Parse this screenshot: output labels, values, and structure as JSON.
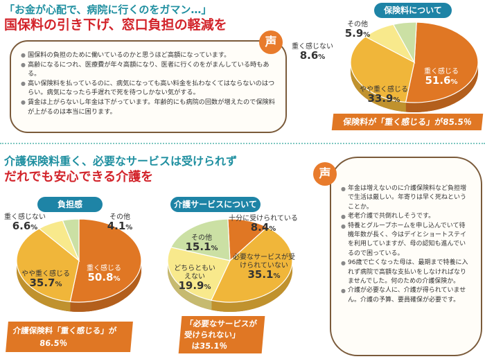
{
  "top": {
    "quote": "「お金が心配で、病院に行くのをガマン…」",
    "headline": "国保料の引き下げ、窓口負担の軽減を",
    "voice_badge": "声",
    "voices": [
      "国保料の負担のために働いているのかと思うほど高額になっています。",
      "高齢になるにつれ、医療費が年々高額になり、医者に行くのをがまんしている時もある。",
      "高い保険料を払っているのに、病気になっても高い料金を払わなくてはならないのはつらい。病気になったら手遅れで死を待つしかない気がする。",
      "賃金は上がらないし年金は下がっています。年齢的にも病院の回数が増えたので保険料が上がるのは本当に困ります。"
    ],
    "chart_title": "保険料について",
    "summary": "保険料が「重く感じる」が85.5％"
  },
  "bottom": {
    "headline1": "介護保険料重く、必要なサービスは受けられず",
    "headline2": "だれでも安心できる介護を",
    "burden_title": "負担感",
    "burden_summary_1": "介護保険料「重く感じる」が",
    "burden_summary_2": "86.5％",
    "service_title": "介護サービスについて",
    "service_summary_1": "「必要なサービスが",
    "service_summary_2": "受けられない」",
    "service_summary_3": "は35.1％",
    "voice_badge": "声",
    "voices": [
      "年金は増えないのに介護保険料など負担増で生活は厳しい。年寄りは早く死ねということか。",
      "老老介護で共倒れしそうです。",
      "特養とグループホームを申し込んでいて待機年数が長く、今はデイとショートステイを利用していますが、母の認知も進んでいるので困っている。",
      "96歳で亡くなった母は、最期まで特養に入れず病院で高額な支払いをしなければなりませんでした。何のための介護保険か。",
      "介護が必要な人に、介護が得られていません。介護の予算、要員確保が必要です。"
    ]
  },
  "chart_data": [
    {
      "type": "pie",
      "title": "保険料について",
      "labels": [
        "重く感じる",
        "やや重く感じる",
        "重く感じない",
        "その他"
      ],
      "values": [
        51.6,
        33.9,
        8.6,
        5.9
      ],
      "value_labels": [
        "51.6",
        "33.9",
        "8.6",
        "5.9"
      ],
      "unit": "%",
      "colors": [
        "#e07724",
        "#f0b63a",
        "#f8e98c",
        "#cbe0a4"
      ]
    },
    {
      "type": "pie",
      "title": "負担感",
      "labels": [
        "重く感じる",
        "やや重く感じる",
        "重く感じない",
        "その他"
      ],
      "values": [
        50.8,
        35.7,
        6.6,
        4.1
      ],
      "value_labels": [
        "50.8",
        "35.7",
        "6.6",
        "4.1"
      ],
      "unit": "%",
      "colors": [
        "#e07724",
        "#f0b63a",
        "#f8e98c",
        "#cbe0a4"
      ]
    },
    {
      "type": "pie",
      "title": "介護サービスについて",
      "labels": [
        "十分に受けられている",
        "必要なサービスが受けられていない",
        "どちらともいえない",
        "その他"
      ],
      "values": [
        8.4,
        35.1,
        19.9,
        15.1
      ],
      "value_labels": [
        "8.4",
        "35.1",
        "19.9",
        "15.1"
      ],
      "unit": "%",
      "colors": [
        "#e07724",
        "#f0b63a",
        "#f8e98c",
        "#cbe0a4"
      ]
    }
  ]
}
